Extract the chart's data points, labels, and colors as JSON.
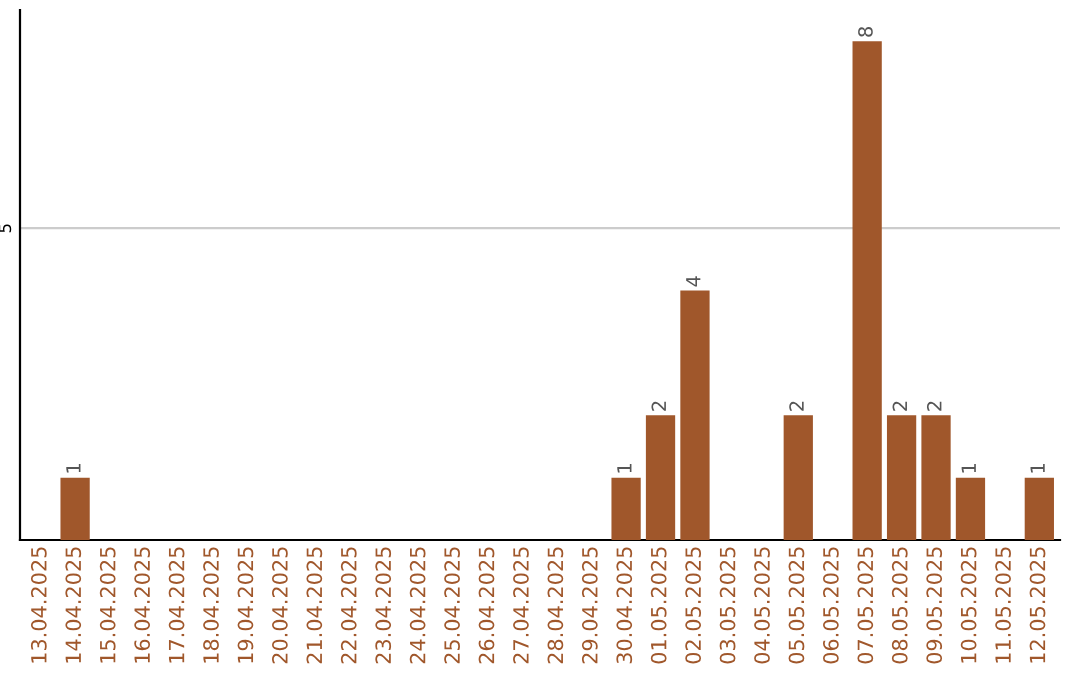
{
  "chart_data": {
    "type": "bar",
    "categories": [
      "13.04.2025",
      "14.04.2025",
      "15.04.2025",
      "16.04.2025",
      "17.04.2025",
      "18.04.2025",
      "19.04.2025",
      "20.04.2025",
      "21.04.2025",
      "22.04.2025",
      "23.04.2025",
      "24.04.2025",
      "25.04.2025",
      "26.04.2025",
      "27.04.2025",
      "28.04.2025",
      "29.04.2025",
      "30.04.2025",
      "01.05.2025",
      "02.05.2025",
      "03.05.2025",
      "04.05.2025",
      "05.05.2025",
      "06.05.2025",
      "07.05.2025",
      "08.05.2025",
      "09.05.2025",
      "10.05.2025",
      "11.05.2025",
      "12.05.2025"
    ],
    "values": [
      0,
      1,
      0,
      0,
      0,
      0,
      0,
      0,
      0,
      0,
      0,
      0,
      0,
      0,
      0,
      0,
      0,
      1,
      2,
      4,
      0,
      0,
      2,
      0,
      8,
      2,
      2,
      1,
      0,
      1
    ],
    "color": "#a0572b",
    "value_labels": [
      null,
      "1",
      null,
      null,
      null,
      null,
      null,
      null,
      null,
      null,
      null,
      null,
      null,
      null,
      null,
      null,
      null,
      "1",
      "2",
      "4",
      null,
      null,
      "2",
      null,
      "8",
      "2",
      "2",
      "1",
      null,
      "1"
    ],
    "ylim": [
      0,
      8.5
    ],
    "yticks": [
      5
    ],
    "grid": "y"
  }
}
